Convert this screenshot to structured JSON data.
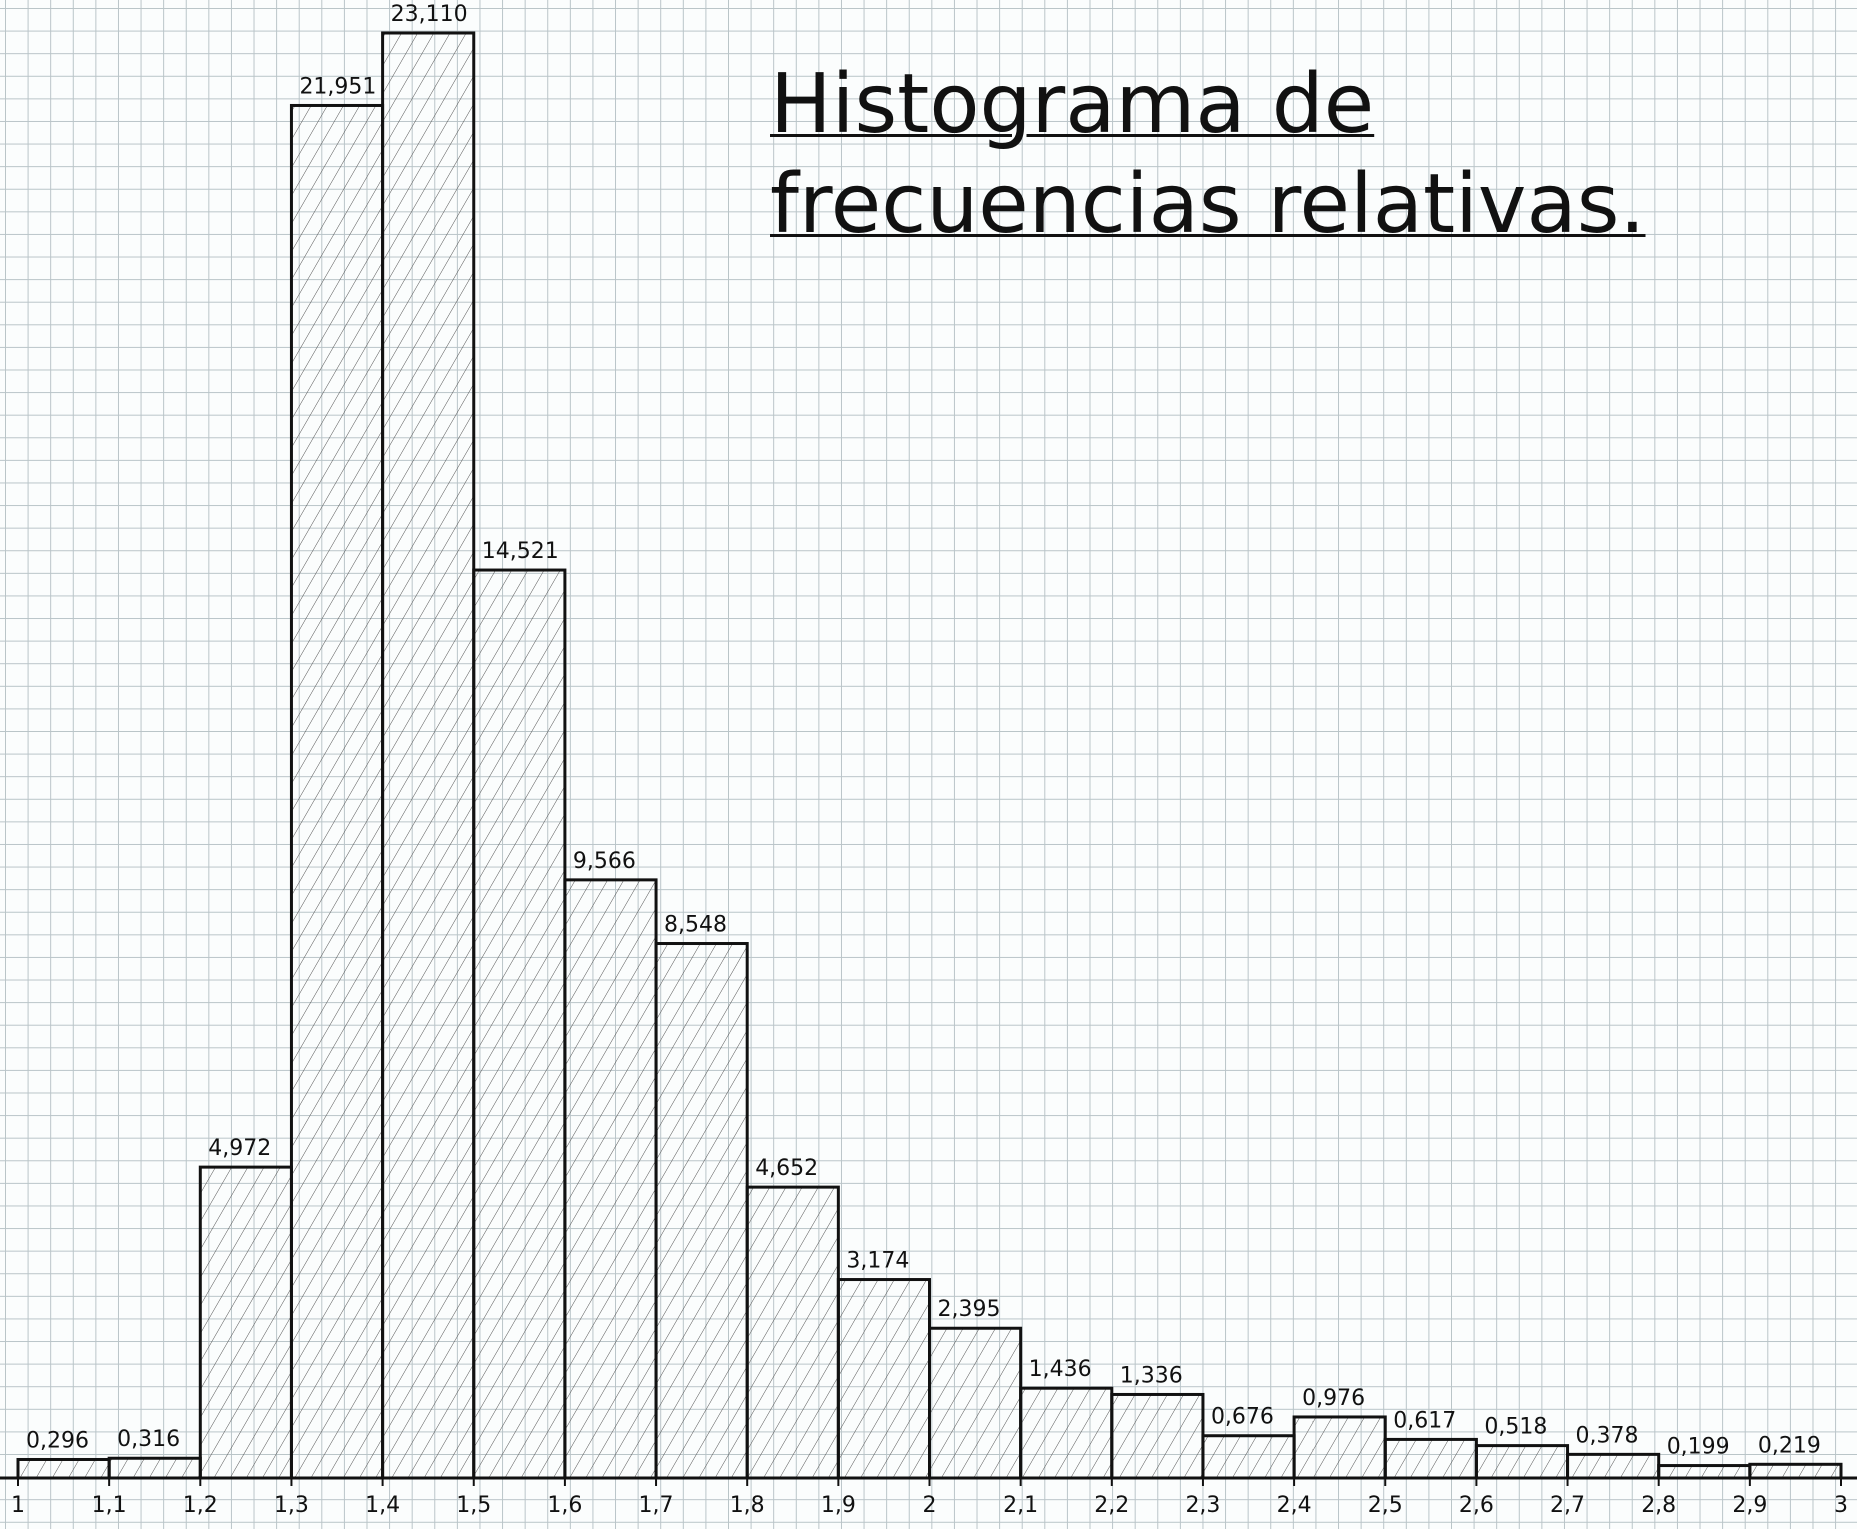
{
  "chart_data": {
    "type": "histogram",
    "title": "Histograma de frecuencias relativas.",
    "bins": [
      1,
      1.1,
      1.2,
      1.3,
      1.4,
      1.5,
      1.6,
      1.7,
      1.8,
      1.9,
      2,
      2.1,
      2.2,
      2.3,
      2.4,
      2.5,
      2.6,
      2.7,
      2.8,
      2.9,
      3
    ],
    "values": [
      0.296,
      0.316,
      4.972,
      21.951,
      23.11,
      14.521,
      9.566,
      8.548,
      4.652,
      3.174,
      2.395,
      1.436,
      1.336,
      0.676,
      0.976,
      0.617,
      0.518,
      0.378,
      0.199,
      0.219
    ],
    "value_labels": [
      "0,296",
      "0,316",
      "4,972",
      "21,951",
      "23,110",
      "14,521",
      "9,566",
      "8,548",
      "4,652",
      "3,174",
      "2,395",
      "1,436",
      "1,336",
      "0,676",
      "0,976",
      "0,617",
      "0,518",
      "0,378",
      "0,199",
      "0,219"
    ],
    "xlim": [
      1,
      3
    ],
    "xticks": [
      1,
      {
        "value": 1.1,
        "label": "1,1"
      },
      {
        "value": 1.2,
        "label": "1,2"
      },
      {
        "value": 1.3,
        "label": "1,3"
      },
      {
        "value": 1.4,
        "label": "1,4"
      },
      {
        "value": 1.5,
        "label": "1,5"
      },
      {
        "value": 1.6,
        "label": "1,6"
      },
      {
        "value": 1.7,
        "label": "1,7"
      },
      {
        "value": 1.8,
        "label": "1,8"
      },
      {
        "value": 1.9,
        "label": "1,9"
      },
      2,
      {
        "value": 2.1,
        "label": "2,1"
      },
      {
        "value": 2.2,
        "label": "2,2"
      },
      {
        "value": 2.3,
        "label": "2,3"
      },
      {
        "value": 2.4,
        "label": "2,4"
      },
      {
        "value": 2.5,
        "label": "2,5"
      },
      {
        "value": 2.6,
        "label": "2,6"
      },
      {
        "value": 2.7,
        "label": "2,7"
      },
      {
        "value": 2.8,
        "label": "2,8"
      },
      {
        "value": 2.9,
        "label": "2,9"
      },
      3
    ]
  }
}
